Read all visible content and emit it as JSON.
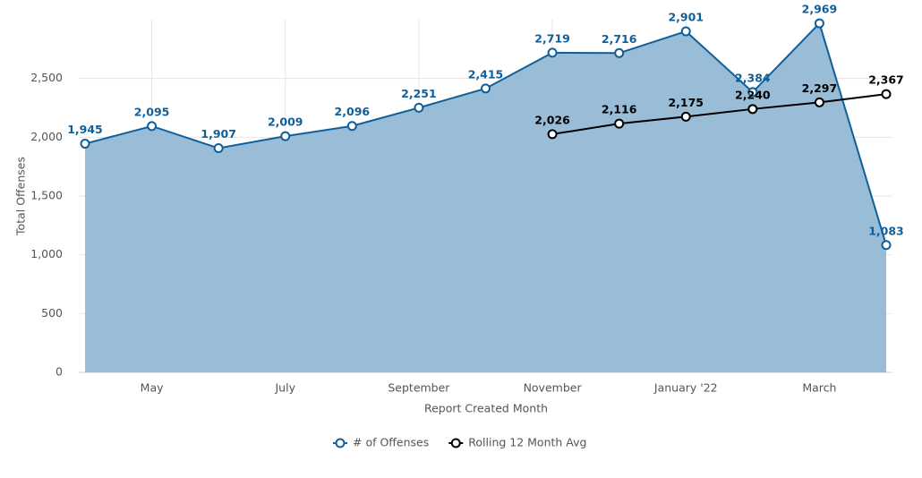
{
  "chart_data": {
    "type": "area-line",
    "x_label": "Report Created Month",
    "y_label": "Total Offenses",
    "categories": [
      null,
      "May",
      null,
      "July",
      null,
      "September",
      null,
      "November",
      null,
      "January '22",
      null,
      "March",
      null
    ],
    "series": [
      {
        "name": "# of Offenses",
        "color": "#0f5f9a",
        "fill": "#99bcd7",
        "values": [
          1945,
          2095,
          1907,
          2009,
          2096,
          2251,
          2415,
          2719,
          2716,
          2901,
          2384,
          2969,
          1083
        ],
        "value_labels": [
          "1,945",
          "2,095",
          "1,907",
          "2,009",
          "2,096",
          "2,251",
          "2,415",
          "2,719",
          "2,716",
          "2,901",
          "2,384",
          "2,969",
          "1,083"
        ]
      },
      {
        "name": "Rolling 12 Month Avg",
        "color": "#000000",
        "values": [
          null,
          null,
          null,
          null,
          null,
          null,
          null,
          2026,
          2116,
          2175,
          2240,
          2297,
          2367
        ],
        "value_labels": [
          null,
          null,
          null,
          null,
          null,
          null,
          null,
          "2,026",
          "2,116",
          "2,175",
          "2,240",
          "2,297",
          "2,367"
        ]
      }
    ],
    "ylim": [
      0,
      3000
    ],
    "yticks": [
      0,
      500,
      {
        "value": 1000,
        "label": "1,000"
      },
      {
        "value": 1500,
        "label": "1,500"
      },
      {
        "value": 2000,
        "label": "2,000"
      },
      {
        "value": 2500,
        "label": "2,500"
      }
    ],
    "grid": true,
    "legend": "bottom"
  }
}
